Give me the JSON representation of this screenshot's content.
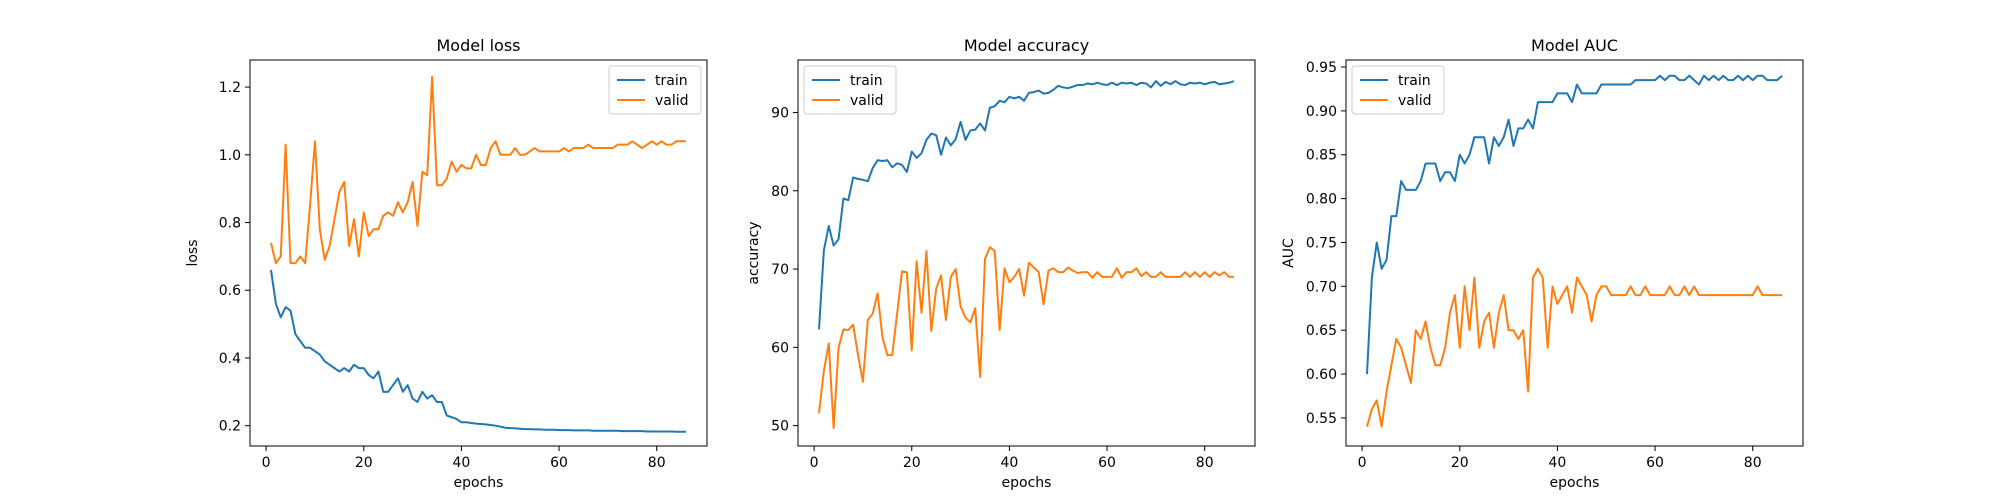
{
  "chart_data": [
    {
      "type": "line",
      "title": "Model loss",
      "xlabel": "epochs",
      "ylabel": "loss",
      "xlim": [
        -3.3,
        90.3
      ],
      "ylim": [
        0.14,
        1.28
      ],
      "xticks": [
        0,
        20,
        40,
        60,
        80
      ],
      "xtick_labels": [
        "0",
        "20",
        "40",
        "60",
        "80"
      ],
      "yticks": [
        0.2,
        0.4,
        0.6,
        0.8,
        1.0,
        1.2
      ],
      "ytick_labels": [
        "0.2",
        "0.4",
        "0.6",
        "0.8",
        "1.0",
        "1.2"
      ],
      "legend_location": "upper right",
      "x": [
        1,
        2,
        3,
        4,
        5,
        6,
        7,
        8,
        9,
        10,
        11,
        12,
        13,
        14,
        15,
        16,
        17,
        18,
        19,
        20,
        21,
        22,
        23,
        24,
        25,
        26,
        27,
        28,
        29,
        30,
        31,
        32,
        33,
        34,
        35,
        36,
        37,
        38,
        39,
        40,
        41,
        42,
        43,
        44,
        45,
        46,
        47,
        48,
        49,
        50,
        51,
        52,
        53,
        54,
        55,
        56,
        57,
        58,
        59,
        60,
        61,
        62,
        63,
        64,
        65,
        66,
        67,
        68,
        69,
        70,
        71,
        72,
        73,
        74,
        75,
        76,
        77,
        78,
        79,
        80,
        81,
        82,
        83,
        84,
        85,
        86
      ],
      "series": [
        {
          "name": "train",
          "color": "#1f77b4",
          "values": [
            0.66,
            0.56,
            0.52,
            0.55,
            0.54,
            0.47,
            0.45,
            0.43,
            0.43,
            0.42,
            0.41,
            0.39,
            0.38,
            0.37,
            0.36,
            0.37,
            0.36,
            0.38,
            0.37,
            0.37,
            0.35,
            0.34,
            0.36,
            0.3,
            0.3,
            0.32,
            0.34,
            0.3,
            0.32,
            0.28,
            0.27,
            0.3,
            0.28,
            0.29,
            0.27,
            0.27,
            0.23,
            0.225,
            0.22,
            0.21,
            0.21,
            0.208,
            0.206,
            0.205,
            0.204,
            0.202,
            0.2,
            0.197,
            0.194,
            0.193,
            0.192,
            0.191,
            0.19,
            0.19,
            0.189,
            0.189,
            0.188,
            0.188,
            0.188,
            0.187,
            0.187,
            0.187,
            0.186,
            0.186,
            0.186,
            0.186,
            0.185,
            0.185,
            0.185,
            0.185,
            0.185,
            0.185,
            0.184,
            0.184,
            0.184,
            0.184,
            0.184,
            0.183,
            0.183,
            0.183,
            0.183,
            0.183,
            0.183,
            0.182,
            0.182,
            0.182
          ]
        },
        {
          "name": "valid",
          "color": "#ff7f0e",
          "values": [
            0.74,
            0.68,
            0.7,
            1.03,
            0.68,
            0.68,
            0.7,
            0.68,
            0.85,
            1.04,
            0.78,
            0.69,
            0.73,
            0.81,
            0.89,
            0.92,
            0.73,
            0.81,
            0.7,
            0.83,
            0.76,
            0.78,
            0.78,
            0.82,
            0.83,
            0.82,
            0.86,
            0.83,
            0.86,
            0.92,
            0.79,
            0.95,
            0.94,
            1.23,
            0.91,
            0.91,
            0.93,
            0.98,
            0.95,
            0.97,
            0.96,
            0.96,
            1.0,
            0.97,
            0.97,
            1.02,
            1.04,
            1.0,
            1.0,
            1.0,
            1.02,
            1.0,
            1.0,
            1.01,
            1.02,
            1.01,
            1.01,
            1.01,
            1.01,
            1.01,
            1.02,
            1.01,
            1.02,
            1.02,
            1.02,
            1.03,
            1.02,
            1.02,
            1.02,
            1.02,
            1.02,
            1.03,
            1.03,
            1.03,
            1.04,
            1.03,
            1.02,
            1.03,
            1.04,
            1.03,
            1.04,
            1.03,
            1.03,
            1.04,
            1.04,
            1.04
          ]
        }
      ]
    },
    {
      "type": "line",
      "title": "Model accuracy",
      "xlabel": "epochs",
      "ylabel": "accuracy",
      "xlim": [
        -3.3,
        90.3
      ],
      "ylim": [
        47.4,
        96.7
      ],
      "xticks": [
        0,
        20,
        40,
        60,
        80
      ],
      "xtick_labels": [
        "0",
        "20",
        "40",
        "60",
        "80"
      ],
      "yticks": [
        50,
        60,
        70,
        80,
        90
      ],
      "ytick_labels": [
        "50",
        "60",
        "70",
        "80",
        "90"
      ],
      "legend_location": "upper left",
      "x": [
        1,
        2,
        3,
        4,
        5,
        6,
        7,
        8,
        9,
        10,
        11,
        12,
        13,
        14,
        15,
        16,
        17,
        18,
        19,
        20,
        21,
        22,
        23,
        24,
        25,
        26,
        27,
        28,
        29,
        30,
        31,
        32,
        33,
        34,
        35,
        36,
        37,
        38,
        39,
        40,
        41,
        42,
        43,
        44,
        45,
        46,
        47,
        48,
        49,
        50,
        51,
        52,
        53,
        54,
        55,
        56,
        57,
        58,
        59,
        60,
        61,
        62,
        63,
        64,
        65,
        66,
        67,
        68,
        69,
        70,
        71,
        72,
        73,
        74,
        75,
        76,
        77,
        78,
        79,
        80,
        81,
        82,
        83,
        84,
        85,
        86
      ],
      "series": [
        {
          "name": "train",
          "color": "#1f77b4",
          "values": [
            62.3,
            72.4,
            75.5,
            73.0,
            73.8,
            79.0,
            78.8,
            81.7,
            81.5,
            81.4,
            81.2,
            82.9,
            83.9,
            83.8,
            83.9,
            83.0,
            83.5,
            83.3,
            82.4,
            85.0,
            84.2,
            84.8,
            86.5,
            87.3,
            87.1,
            84.6,
            86.8,
            85.8,
            86.6,
            88.8,
            86.5,
            87.7,
            87.8,
            88.6,
            87.7,
            90.6,
            90.8,
            91.5,
            91.3,
            92.0,
            91.8,
            92.0,
            91.5,
            92.5,
            92.6,
            92.8,
            92.4,
            92.5,
            92.9,
            93.4,
            93.2,
            93.1,
            93.3,
            93.5,
            93.5,
            93.7,
            93.6,
            93.8,
            93.6,
            93.5,
            93.8,
            93.5,
            93.8,
            93.7,
            93.8,
            93.5,
            93.8,
            93.7,
            93.2,
            94.0,
            93.4,
            93.9,
            93.6,
            94.0,
            93.6,
            93.5,
            93.8,
            93.7,
            93.8,
            93.6,
            93.8,
            93.9,
            93.6,
            93.7,
            93.8,
            94.0
          ]
        },
        {
          "name": "valid",
          "color": "#ff7f0e",
          "values": [
            51.6,
            57.0,
            60.5,
            49.7,
            59.9,
            62.3,
            62.2,
            62.9,
            59.0,
            55.6,
            63.5,
            64.3,
            66.9,
            61.3,
            59.0,
            59.0,
            64.3,
            69.7,
            69.6,
            59.6,
            71.0,
            64.4,
            72.3,
            62.1,
            67.5,
            69.2,
            63.5,
            69.0,
            70.0,
            65.2,
            63.8,
            63.2,
            65.0,
            56.2,
            71.3,
            72.8,
            72.3,
            62.2,
            70.1,
            68.3,
            69.0,
            70.0,
            66.6,
            70.8,
            70.2,
            69.6,
            65.5,
            69.8,
            70.1,
            69.6,
            69.6,
            70.2,
            69.8,
            69.5,
            69.6,
            69.6,
            68.9,
            69.6,
            69.0,
            69.0,
            69.0,
            70.1,
            68.9,
            69.6,
            69.6,
            70.1,
            69.1,
            69.6,
            69.0,
            69.0,
            69.6,
            69.0,
            69.0,
            69.0,
            69.0,
            69.6,
            69.0,
            69.6,
            69.0,
            69.6,
            69.0,
            69.6,
            69.2,
            69.6,
            69.0,
            69.0
          ]
        }
      ]
    },
    {
      "type": "line",
      "title": "Model AUC",
      "xlabel": "epochs",
      "ylabel": "AUC",
      "xlim": [
        -3.3,
        90.3
      ],
      "ylim": [
        0.518,
        0.958
      ],
      "xticks": [
        0,
        20,
        40,
        60,
        80
      ],
      "xtick_labels": [
        "0",
        "20",
        "40",
        "60",
        "80"
      ],
      "yticks": [
        0.55,
        0.6,
        0.65,
        0.7,
        0.75,
        0.8,
        0.85,
        0.9,
        0.95
      ],
      "ytick_labels": [
        "0.55",
        "0.60",
        "0.65",
        "0.70",
        "0.75",
        "0.80",
        "0.85",
        "0.90",
        "0.95"
      ],
      "legend_location": "upper left",
      "x": [
        1,
        2,
        3,
        4,
        5,
        6,
        7,
        8,
        9,
        10,
        11,
        12,
        13,
        14,
        15,
        16,
        17,
        18,
        19,
        20,
        21,
        22,
        23,
        24,
        25,
        26,
        27,
        28,
        29,
        30,
        31,
        32,
        33,
        34,
        35,
        36,
        37,
        38,
        39,
        40,
        41,
        42,
        43,
        44,
        45,
        46,
        47,
        48,
        49,
        50,
        51,
        52,
        53,
        54,
        55,
        56,
        57,
        58,
        59,
        60,
        61,
        62,
        63,
        64,
        65,
        66,
        67,
        68,
        69,
        70,
        71,
        72,
        73,
        74,
        75,
        76,
        77,
        78,
        79,
        80,
        81,
        82,
        83,
        84,
        85,
        86
      ],
      "series": [
        {
          "name": "train",
          "color": "#1f77b4",
          "values": [
            0.6,
            0.71,
            0.75,
            0.72,
            0.73,
            0.78,
            0.78,
            0.82,
            0.81,
            0.81,
            0.81,
            0.82,
            0.84,
            0.84,
            0.84,
            0.82,
            0.83,
            0.83,
            0.82,
            0.85,
            0.84,
            0.85,
            0.87,
            0.87,
            0.87,
            0.84,
            0.87,
            0.86,
            0.87,
            0.89,
            0.86,
            0.88,
            0.88,
            0.89,
            0.88,
            0.91,
            0.91,
            0.91,
            0.91,
            0.92,
            0.92,
            0.92,
            0.91,
            0.93,
            0.92,
            0.92,
            0.92,
            0.92,
            0.93,
            0.93,
            0.93,
            0.93,
            0.93,
            0.93,
            0.93,
            0.935,
            0.935,
            0.935,
            0.935,
            0.935,
            0.94,
            0.935,
            0.94,
            0.94,
            0.935,
            0.935,
            0.94,
            0.935,
            0.93,
            0.94,
            0.935,
            0.94,
            0.935,
            0.94,
            0.935,
            0.935,
            0.94,
            0.935,
            0.94,
            0.935,
            0.94,
            0.94,
            0.935,
            0.935,
            0.935,
            0.94
          ]
        },
        {
          "name": "valid",
          "color": "#ff7f0e",
          "values": [
            0.54,
            0.56,
            0.57,
            0.54,
            0.58,
            0.61,
            0.64,
            0.63,
            0.61,
            0.59,
            0.65,
            0.64,
            0.66,
            0.63,
            0.61,
            0.61,
            0.63,
            0.67,
            0.69,
            0.63,
            0.7,
            0.65,
            0.71,
            0.63,
            0.66,
            0.67,
            0.63,
            0.67,
            0.69,
            0.65,
            0.65,
            0.64,
            0.65,
            0.58,
            0.71,
            0.72,
            0.71,
            0.63,
            0.7,
            0.68,
            0.69,
            0.7,
            0.67,
            0.71,
            0.7,
            0.69,
            0.66,
            0.69,
            0.7,
            0.7,
            0.69,
            0.69,
            0.69,
            0.69,
            0.7,
            0.69,
            0.69,
            0.7,
            0.69,
            0.69,
            0.69,
            0.69,
            0.7,
            0.69,
            0.69,
            0.7,
            0.69,
            0.7,
            0.69,
            0.69,
            0.69,
            0.69,
            0.69,
            0.69,
            0.69,
            0.69,
            0.69,
            0.69,
            0.69,
            0.69,
            0.7,
            0.69,
            0.69,
            0.69,
            0.69,
            0.69
          ]
        }
      ]
    }
  ]
}
